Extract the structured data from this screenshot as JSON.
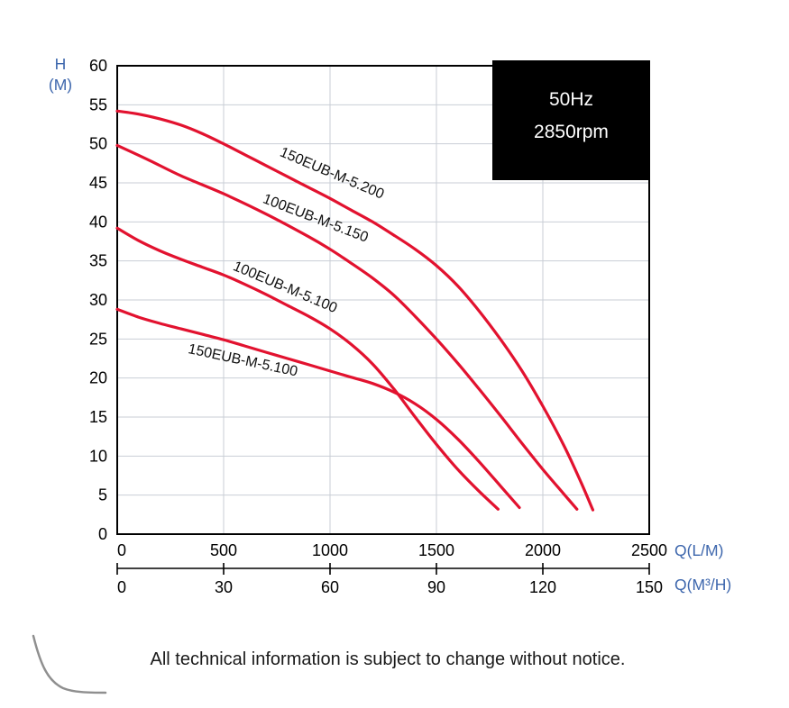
{
  "freq_box": {
    "line1": "50Hz",
    "line2": "2850rpm"
  },
  "axis_titles": {
    "y1": "H",
    "y2": "(M)",
    "x1": "Q(L/M)",
    "x2": "Q(M³/H)"
  },
  "footer": {
    "note": "All technical information is subject to change without notice."
  },
  "colors": {
    "curve": "#e2122f",
    "axis_title": "#3e67ad",
    "grid": "#c9ced6",
    "tick_text": "#000000",
    "box_bg": "#000000",
    "box_text": "#ffffff",
    "swoosh": "#8f8f8f"
  },
  "chart_data": {
    "type": "line",
    "title": "Pump performance curves 50Hz 2850rpm",
    "xlabel": "Q(L/M)",
    "x2label": "Q(M³/H)",
    "ylabel": "H (M)",
    "xlim": [
      0,
      2500
    ],
    "x2lim": [
      0,
      150
    ],
    "ylim": [
      0,
      60
    ],
    "x_ticks": [
      0,
      500,
      1000,
      1500,
      2000,
      2500
    ],
    "x2_ticks": [
      0,
      30,
      60,
      90,
      120,
      150
    ],
    "y_ticks": [
      0,
      5,
      10,
      15,
      20,
      25,
      30,
      35,
      40,
      45,
      50,
      55,
      60
    ],
    "grid": true,
    "legend": "labels-on-curves",
    "series": [
      {
        "name": "150EUB-M-5.200",
        "label_at": [
          760,
          48.5
        ],
        "label_angle": 23,
        "points": [
          [
            0,
            54.2
          ],
          [
            100,
            53.8
          ],
          [
            200,
            53.2
          ],
          [
            300,
            52.4
          ],
          [
            400,
            51.3
          ],
          [
            500,
            50.0
          ],
          [
            600,
            48.6
          ],
          [
            700,
            47.2
          ],
          [
            800,
            45.8
          ],
          [
            900,
            44.4
          ],
          [
            1000,
            43.0
          ],
          [
            1100,
            41.5
          ],
          [
            1200,
            40.0
          ],
          [
            1300,
            38.3
          ],
          [
            1400,
            36.5
          ],
          [
            1500,
            34.4
          ],
          [
            1600,
            31.8
          ],
          [
            1700,
            28.6
          ],
          [
            1800,
            25.0
          ],
          [
            1900,
            21.0
          ],
          [
            2000,
            16.4
          ],
          [
            2100,
            11.3
          ],
          [
            2180,
            6.6
          ],
          [
            2235,
            3.1
          ]
        ]
      },
      {
        "name": "100EUB-M-5.150",
        "label_at": [
          680,
          42.5
        ],
        "label_angle": 21,
        "points": [
          [
            0,
            49.8
          ],
          [
            150,
            47.9
          ],
          [
            300,
            45.9
          ],
          [
            500,
            43.6
          ],
          [
            700,
            41.0
          ],
          [
            900,
            38.1
          ],
          [
            1000,
            36.5
          ],
          [
            1100,
            34.7
          ],
          [
            1200,
            32.8
          ],
          [
            1300,
            30.6
          ],
          [
            1400,
            27.9
          ],
          [
            1500,
            25.0
          ],
          [
            1600,
            21.9
          ],
          [
            1700,
            18.6
          ],
          [
            1800,
            15.2
          ],
          [
            1900,
            11.7
          ],
          [
            2000,
            8.3
          ],
          [
            2100,
            5.1
          ],
          [
            2160,
            3.2
          ]
        ]
      },
      {
        "name": "100EUB-M-5.100",
        "label_at": [
          540,
          33.9
        ],
        "label_angle": 23,
        "points": [
          [
            0,
            39.2
          ],
          [
            100,
            37.6
          ],
          [
            200,
            36.3
          ],
          [
            300,
            35.2
          ],
          [
            400,
            34.2
          ],
          [
            500,
            33.2
          ],
          [
            600,
            32.0
          ],
          [
            700,
            30.7
          ],
          [
            800,
            29.3
          ],
          [
            900,
            27.9
          ],
          [
            1000,
            26.3
          ],
          [
            1100,
            24.3
          ],
          [
            1200,
            21.8
          ],
          [
            1300,
            18.6
          ],
          [
            1400,
            15.0
          ],
          [
            1500,
            11.5
          ],
          [
            1600,
            8.3
          ],
          [
            1700,
            5.5
          ],
          [
            1790,
            3.2
          ]
        ]
      },
      {
        "name": "150EUB-M-5.100",
        "label_at": [
          330,
          23.2
        ],
        "label_angle": 12,
        "points": [
          [
            0,
            28.8
          ],
          [
            100,
            27.8
          ],
          [
            200,
            27.0
          ],
          [
            300,
            26.3
          ],
          [
            400,
            25.6
          ],
          [
            500,
            24.9
          ],
          [
            600,
            24.1
          ],
          [
            700,
            23.3
          ],
          [
            800,
            22.5
          ],
          [
            900,
            21.7
          ],
          [
            1000,
            20.9
          ],
          [
            1100,
            20.1
          ],
          [
            1200,
            19.3
          ],
          [
            1300,
            18.2
          ],
          [
            1400,
            16.7
          ],
          [
            1500,
            14.7
          ],
          [
            1600,
            12.2
          ],
          [
            1700,
            9.3
          ],
          [
            1800,
            6.2
          ],
          [
            1890,
            3.4
          ]
        ]
      }
    ]
  }
}
